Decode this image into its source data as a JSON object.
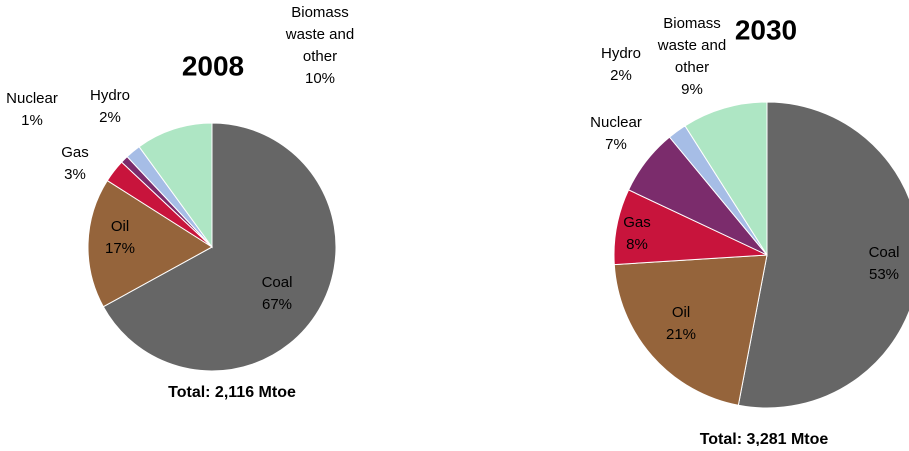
{
  "chart_data": [
    {
      "type": "pie",
      "title": "2008",
      "total_label": "Total:  2,116 Mtoe",
      "start": "12 o'clock",
      "direction": "clockwise",
      "slices": [
        {
          "label": "Coal",
          "value": 67,
          "value_label": "67%",
          "color": "#666666",
          "lines": [
            "Coal",
            "67%"
          ]
        },
        {
          "label": "Oil",
          "value": 17,
          "value_label": "17%",
          "color": "#95643B",
          "lines": [
            "Oil",
            "17%"
          ]
        },
        {
          "label": "Gas",
          "value": 3,
          "value_label": "3%",
          "color": "#C8143C",
          "lines": [
            "Gas",
            "3%"
          ]
        },
        {
          "label": "Nuclear",
          "value": 1,
          "value_label": "1%",
          "color": "#7B2C6C",
          "lines": [
            "Nuclear",
            "1%"
          ]
        },
        {
          "label": "Hydro",
          "value": 2,
          "value_label": "2%",
          "color": "#A6BDE6",
          "lines": [
            "Hydro",
            "2%"
          ]
        },
        {
          "label": "Biomass waste and other",
          "value": 10,
          "value_label": "10%",
          "color": "#AEE6C4",
          "lines": [
            "Biomass",
            "waste and",
            "other",
            "10%"
          ]
        }
      ]
    },
    {
      "type": "pie",
      "title": "2030",
      "total_label": "Total:  3,281 Mtoe",
      "start": "12 o'clock",
      "direction": "clockwise",
      "slices": [
        {
          "label": "Coal",
          "value": 53,
          "value_label": "53%",
          "color": "#666666",
          "lines": [
            "Coal",
            "53%"
          ]
        },
        {
          "label": "Oil",
          "value": 21,
          "value_label": "21%",
          "color": "#95643B",
          "lines": [
            "Oil",
            "21%"
          ]
        },
        {
          "label": "Gas",
          "value": 8,
          "value_label": "8%",
          "color": "#C8143C",
          "lines": [
            "Gas",
            "8%"
          ]
        },
        {
          "label": "Nuclear",
          "value": 7,
          "value_label": "7%",
          "color": "#7B2C6C",
          "lines": [
            "Nuclear",
            "7%"
          ]
        },
        {
          "label": "Hydro",
          "value": 2,
          "value_label": "2%",
          "color": "#A6BDE6",
          "lines": [
            "Hydro",
            "2%"
          ]
        },
        {
          "label": "Biomass waste and other",
          "value": 9,
          "value_label": "9%",
          "color": "#AEE6C4",
          "lines": [
            "Biomass",
            "waste and",
            "other",
            "9%"
          ]
        }
      ]
    }
  ]
}
